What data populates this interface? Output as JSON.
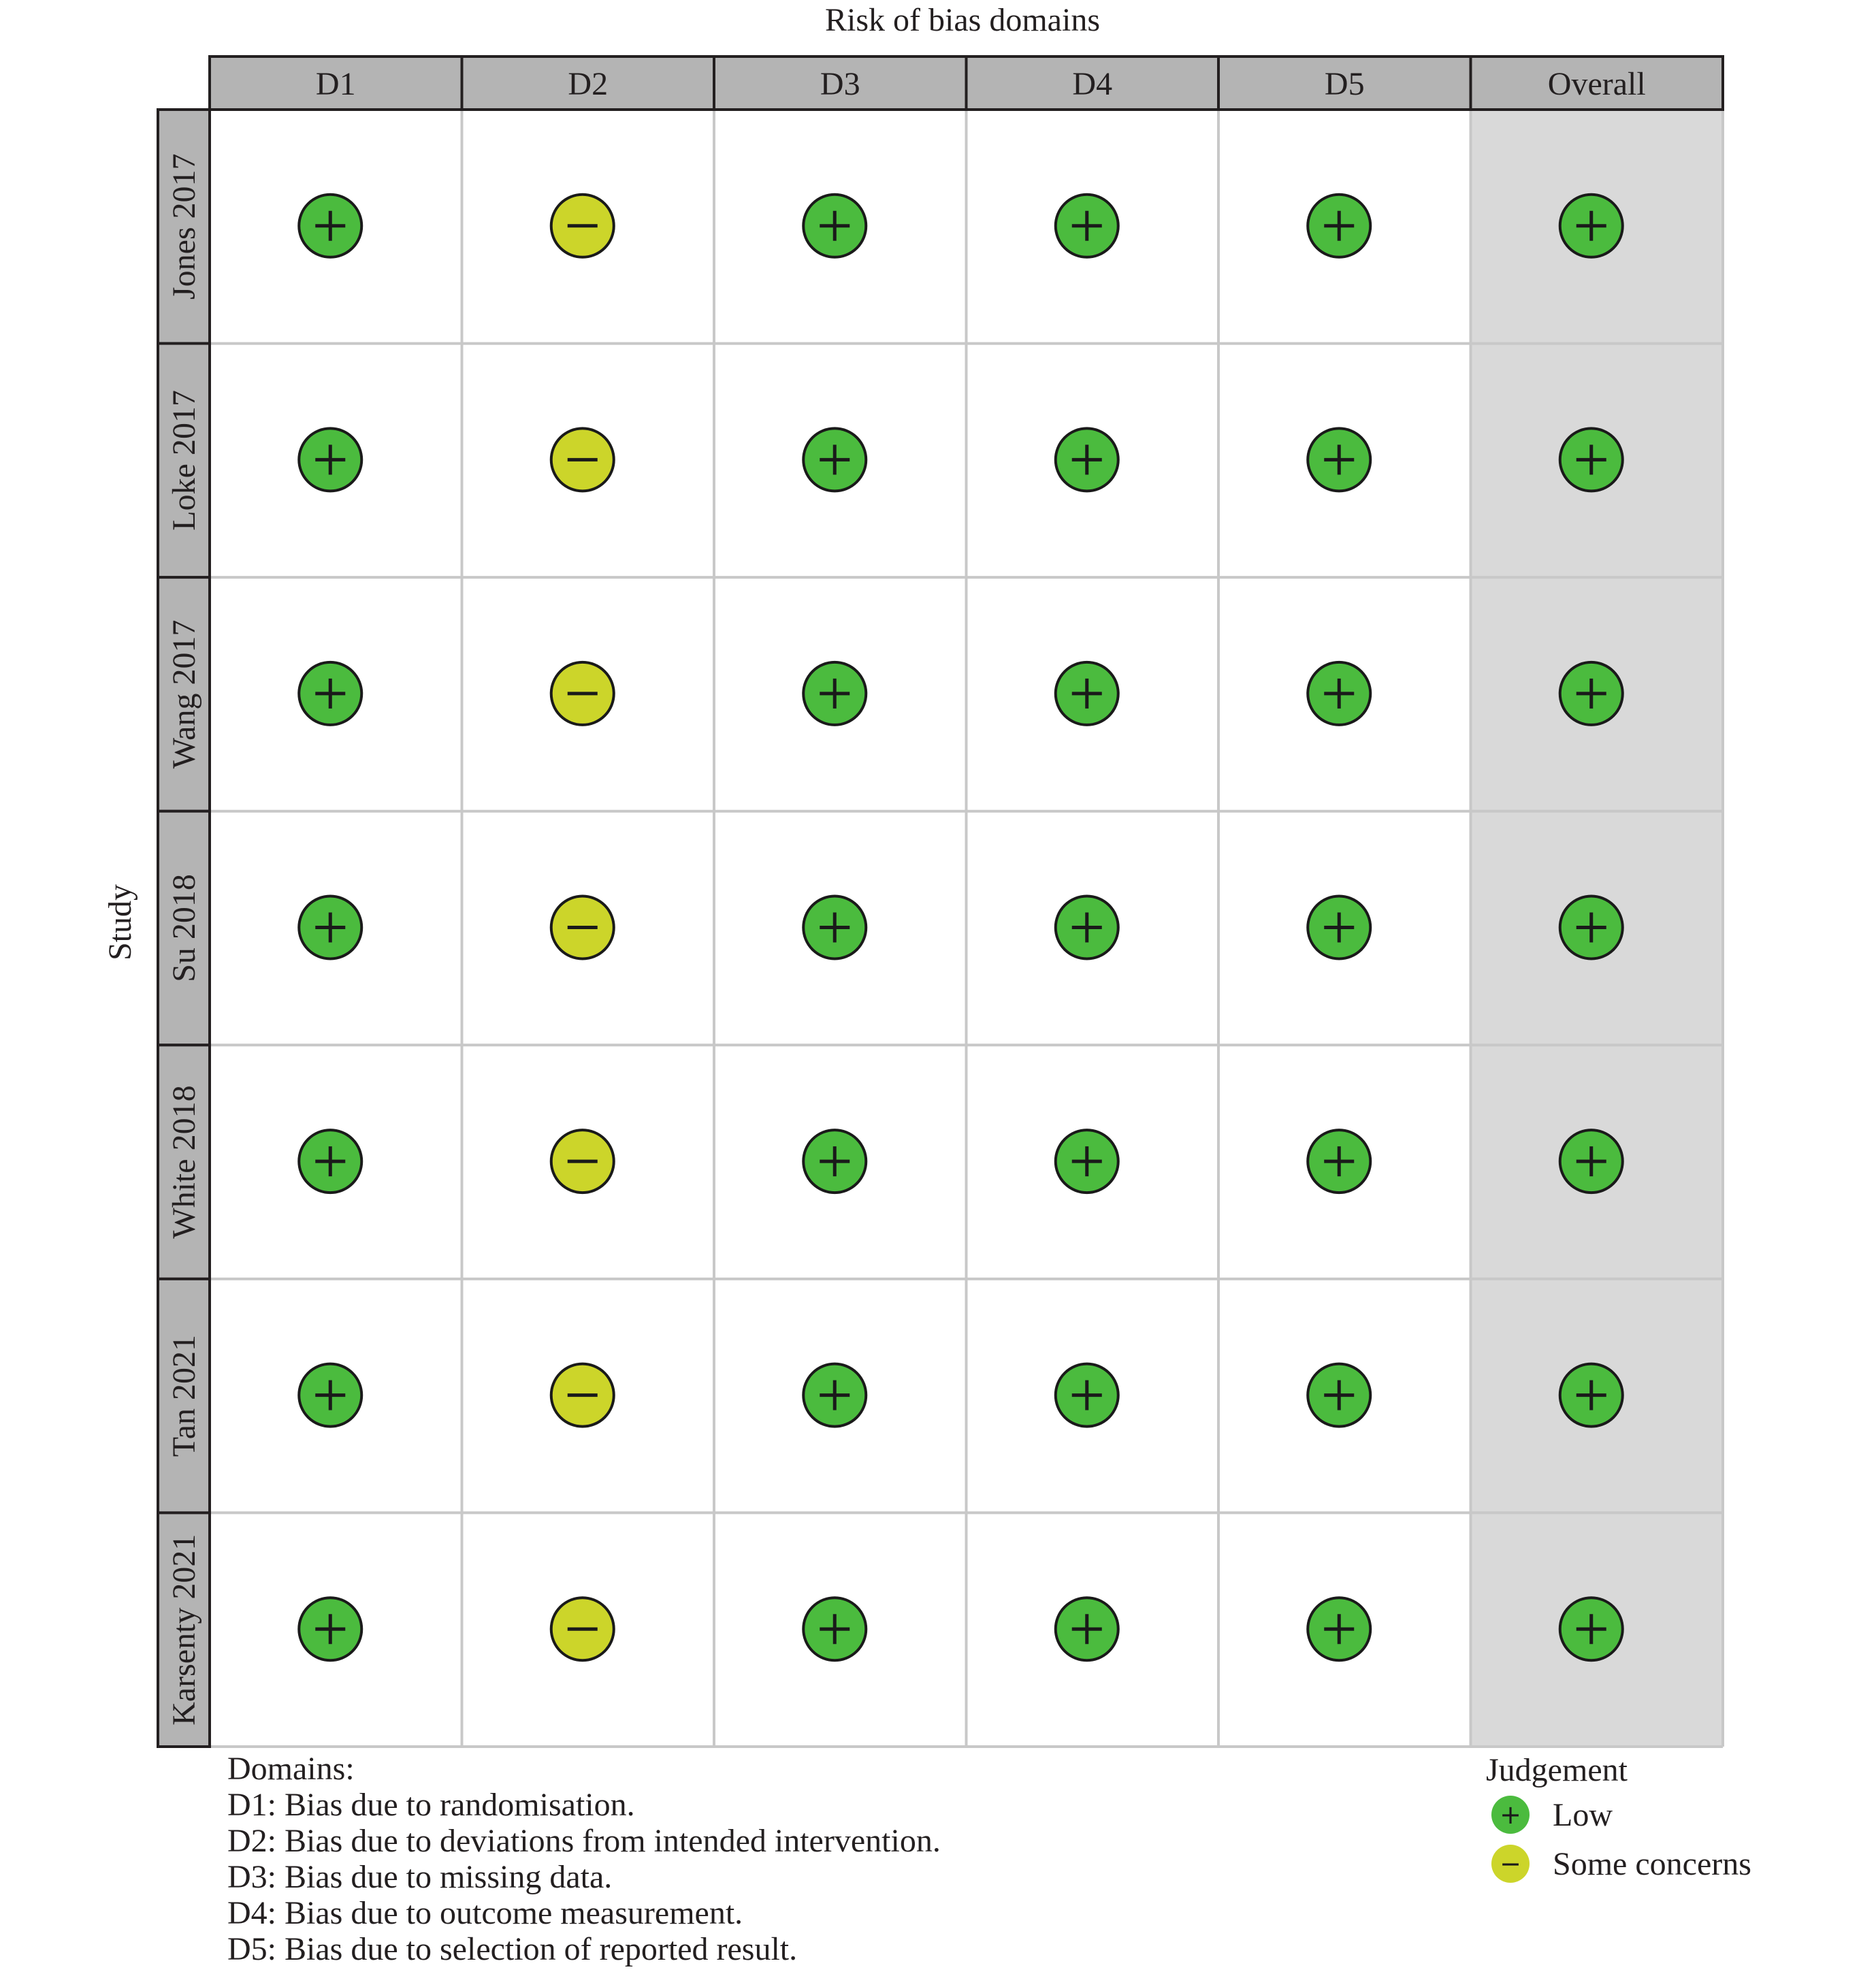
{
  "chart_data": {
    "type": "table",
    "title": "Risk of bias domains",
    "ylabel": "Study",
    "columns": [
      "D1",
      "D2",
      "D3",
      "D4",
      "D5",
      "Overall"
    ],
    "rows": [
      {
        "study": "Jones 2017",
        "judgements": [
          "low",
          "some",
          "low",
          "low",
          "low",
          "low"
        ]
      },
      {
        "study": "Loke 2017",
        "judgements": [
          "low",
          "some",
          "low",
          "low",
          "low",
          "low"
        ]
      },
      {
        "study": "Wang 2017",
        "judgements": [
          "low",
          "some",
          "low",
          "low",
          "low",
          "low"
        ]
      },
      {
        "study": "Su 2018",
        "judgements": [
          "low",
          "some",
          "low",
          "low",
          "low",
          "low"
        ]
      },
      {
        "study": "White 2018",
        "judgements": [
          "low",
          "some",
          "low",
          "low",
          "low",
          "low"
        ]
      },
      {
        "study": "Tan 2021",
        "judgements": [
          "low",
          "some",
          "low",
          "low",
          "low",
          "low"
        ]
      },
      {
        "study": "Karsenty 2021",
        "judgements": [
          "low",
          "some",
          "low",
          "low",
          "low",
          "low"
        ]
      }
    ],
    "legend": {
      "title": "Judgement",
      "placement": "bottom-right",
      "items": [
        {
          "key": "low",
          "label": "Low",
          "symbol": "+",
          "icon": "plus-circle-icon",
          "color": "#4bbb3e"
        },
        {
          "key": "some",
          "label": "Some concerns",
          "symbol": "−",
          "icon": "minus-circle-icon",
          "color": "#ccd52a"
        }
      ]
    },
    "domains_legend": {
      "title": "Domains:",
      "items": [
        {
          "code": "D1",
          "text": "Bias due to randomisation."
        },
        {
          "code": "D2",
          "text": "Bias due to deviations from intended intervention."
        },
        {
          "code": "D3",
          "text": "Bias due to missing data."
        },
        {
          "code": "D4",
          "text": "Bias due to outcome measurement."
        },
        {
          "code": "D5",
          "text": "Bias due to selection of reported result."
        }
      ]
    }
  },
  "colors": {
    "header_bg": "#b4b4b4",
    "overall_bg": "#d9d9d9",
    "grid_line": "#c8c8c8",
    "border": "#231f20"
  }
}
